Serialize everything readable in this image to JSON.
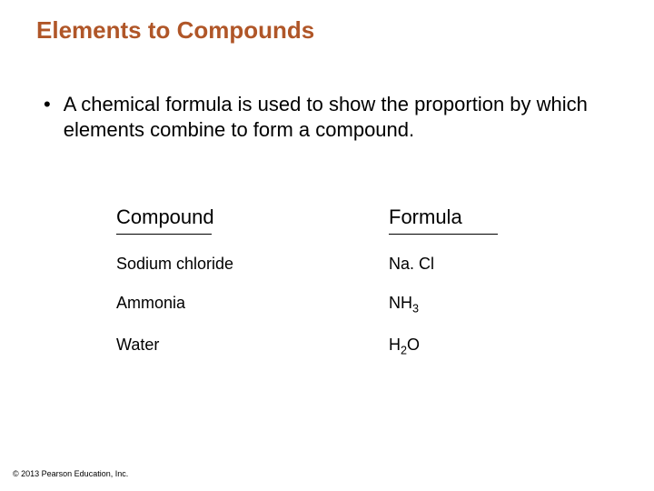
{
  "title": {
    "text": "Elements to Compounds",
    "color": "#b05628",
    "fontsize": 26,
    "weight": "bold"
  },
  "bullet": {
    "text": "A chemical formula is used to show the proportion by which elements combine to form a compound.",
    "fontsize": 22
  },
  "table": {
    "columns": [
      "Compound",
      "Formula"
    ],
    "header_fontsize": 22,
    "cell_fontsize": 18,
    "rows": [
      {
        "name": "Sodium chloride",
        "formula_parts": [
          {
            "t": "Na"
          },
          {
            "t": ". "
          },
          {
            "t": "Cl"
          }
        ]
      },
      {
        "name": "Ammonia",
        "formula_parts": [
          {
            "t": "NH"
          },
          {
            "sub": "3"
          }
        ]
      },
      {
        "name": "Water",
        "formula_parts": [
          {
            "t": "H"
          },
          {
            "sub": "2"
          },
          {
            "t": "O"
          }
        ]
      }
    ],
    "underline_color": "#000000"
  },
  "copyright": "© 2013 Pearson Education, Inc.",
  "background_color": "#ffffff"
}
